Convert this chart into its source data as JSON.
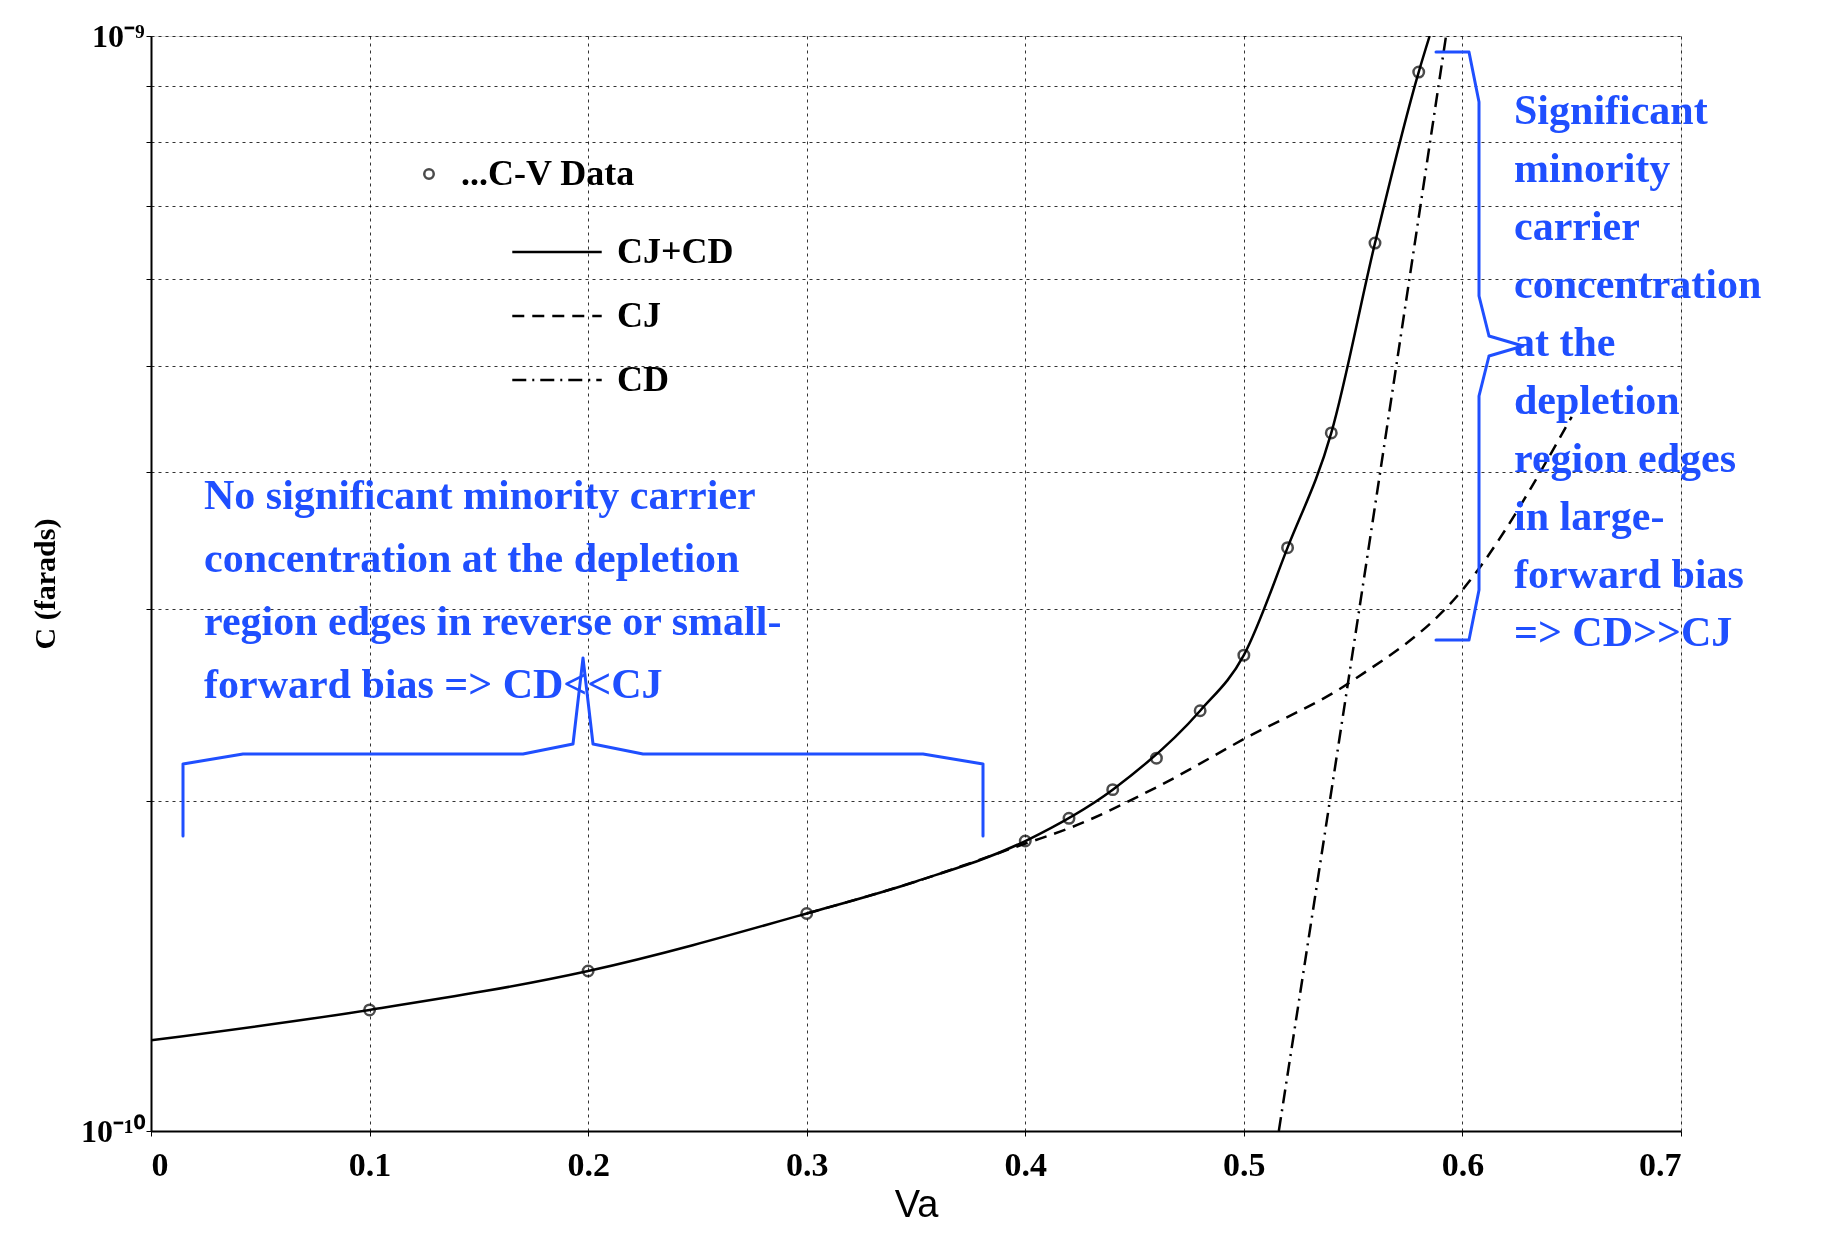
{
  "chart_data": {
    "type": "line",
    "xlabel": "Va",
    "ylabel": "C (farads)",
    "log": "y",
    "grid": true,
    "legend": "top left",
    "xlim": [
      0,
      0.7
    ],
    "xticks": [
      0,
      0.1,
      0.2,
      0.3,
      0.4,
      0.5,
      0.6,
      0.7
    ],
    "ylim": [
      1e-10,
      1e-09
    ],
    "yticks": [
      {
        "value": 1e-10,
        "label": "10⁻¹⁰"
      },
      {
        "value": 2e-10,
        "label": null
      },
      {
        "value": 3e-10,
        "label": null
      },
      {
        "value": 4e-10,
        "label": null
      },
      {
        "value": 5e-10,
        "label": null
      },
      {
        "value": 6e-10,
        "label": null
      },
      {
        "value": 7e-10,
        "label": null
      },
      {
        "value": 8e-10,
        "label": null
      },
      {
        "value": 9e-10,
        "label": null
      },
      {
        "value": 1e-09,
        "label": "10⁻⁹"
      }
    ],
    "series": [
      {
        "type": "scatter",
        "name": "...C-V Data",
        "color": "#000000",
        "marker": "circle",
        "x": [
          0.1,
          0.2,
          0.3,
          0.4,
          0.42,
          0.44,
          0.46,
          0.48,
          0.5,
          0.52,
          0.54,
          0.56,
          0.58
        ],
        "values": [
          1.29e-10,
          1.4e-10,
          1.58e-10,
          1.84e-10,
          1.93e-10,
          2.05e-10,
          2.19e-10,
          2.42e-10,
          2.72e-10,
          3.41e-10,
          4.34e-10,
          6.47e-10,
          9.27e-10
        ]
      },
      {
        "type": "line",
        "name": "CJ+CD",
        "color": "#000000",
        "line_style": "solid",
        "x": [
          0,
          0.1,
          0.2,
          0.3,
          0.35,
          0.4,
          0.44,
          0.48,
          0.5,
          0.52,
          0.54,
          0.56,
          0.58,
          0.585
        ],
        "values": [
          1.21e-10,
          1.29e-10,
          1.4e-10,
          1.58e-10,
          1.69e-10,
          1.84e-10,
          2.05e-10,
          2.42e-10,
          2.72e-10,
          3.41e-10,
          4.34e-10,
          6.47e-10,
          9.27e-10,
          1e-09
        ]
      },
      {
        "type": "line",
        "name": "CJ",
        "color": "#000000",
        "line_style": "dashed",
        "x": [
          0.3,
          0.35,
          0.4,
          0.42,
          0.46,
          0.5,
          0.55,
          0.6,
          0.65
        ],
        "values": [
          1.58e-10,
          1.69e-10,
          1.83e-10,
          1.89e-10,
          2.06e-10,
          2.28e-10,
          2.58e-10,
          3.12e-10,
          4.49e-10
        ]
      },
      {
        "type": "line",
        "name": "CD",
        "color": "#000000",
        "line_style": "dashdot",
        "x": [
          0.516,
          0.555,
          0.5925
        ],
        "values": [
          1e-10,
          3.2e-10,
          1e-09
        ]
      }
    ],
    "annotations": [
      "No significant minority carrier\nconcentration at the depletion\nregion edges in reverse or small-\nforward bias => CD<<CJ",
      "Significant\nminority\ncarrier\nconcentration\nat the\ndepletion\nregion edges\nin large-\nforward bias\n=> CD>>CJ"
    ]
  }
}
